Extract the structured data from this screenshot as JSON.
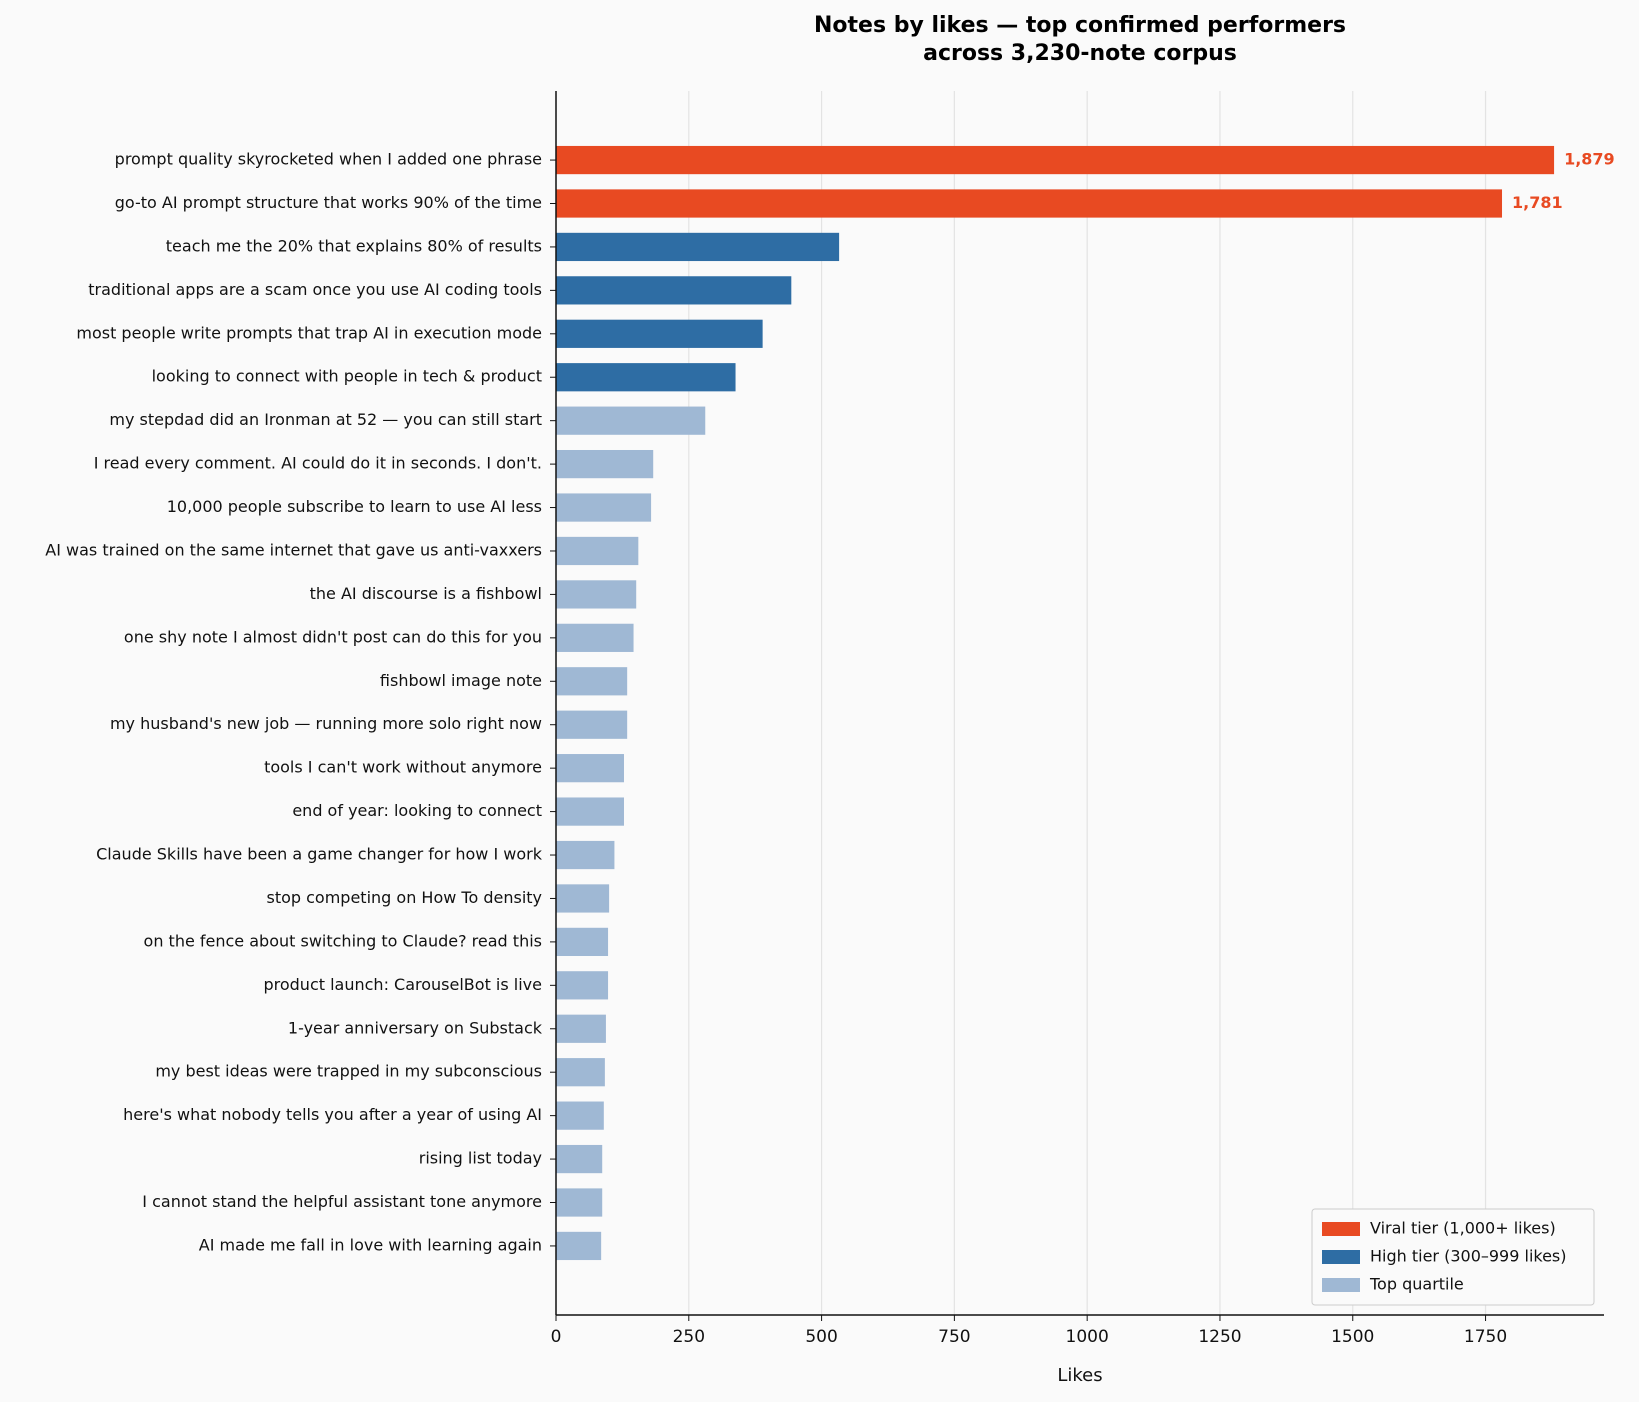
{
  "chart_data": {
    "type": "barh",
    "title": "Notes by likes — top confirmed performers\nacross 3,230-note corpus",
    "xlabel": "Likes",
    "categories": [
      "prompt quality skyrocketed when I added one phrase",
      "go-to AI prompt structure that works 90% of the time",
      "teach me the 20% that explains 80% of results",
      "traditional apps are a scam once you use AI coding tools",
      "most people write prompts that trap AI in execution mode",
      "looking to connect with people in tech & product",
      "my stepdad did an Ironman at 52 — you can still start",
      "I read every comment. AI could do it in seconds. I don't.",
      "10,000 people subscribe to learn to use AI less",
      "AI was trained on the same internet that gave us anti-vaxxers",
      "the AI discourse is a fishbowl",
      "one shy note I almost didn't post can do this for you",
      "fishbowl image note",
      "my husband's new job — running more solo right now",
      "tools I can't work without anymore",
      "end of year: looking to connect",
      "Claude Skills have been a game changer for how I work",
      "stop competing on How To density",
      "on the fence about switching to Claude? read this",
      "product launch: CarouselBot is live",
      "1-year anniversary on Substack",
      "my best ideas were trapped in my subconscious",
      "here's what nobody tells you after a year of using AI",
      "rising list today",
      "I cannot stand the helpful assistant tone anymore",
      "AI made me fall in love with learning again"
    ],
    "series": [
      {
        "name": "Viral tier (1,000+ likes)",
        "color": "#e84a22",
        "values": [
          1879,
          1781,
          null,
          null,
          null,
          null,
          null,
          null,
          null,
          null,
          null,
          null,
          null,
          null,
          null,
          null,
          null,
          null,
          null,
          null,
          null,
          null,
          null,
          null,
          null,
          null
        ],
        "value_labels": [
          "1,879",
          "1,781",
          null,
          null,
          null,
          null,
          null,
          null,
          null,
          null,
          null,
          null,
          null,
          null,
          null,
          null,
          null,
          null,
          null,
          null,
          null,
          null,
          null,
          null,
          null,
          null
        ]
      },
      {
        "name": "High tier (300–999 likes)",
        "color": "#2e6da4",
        "values": [
          null,
          null,
          533,
          443,
          389,
          338,
          null,
          null,
          null,
          null,
          null,
          null,
          null,
          null,
          null,
          null,
          null,
          null,
          null,
          null,
          null,
          null,
          null,
          null,
          null,
          null
        ]
      },
      {
        "name": "Top quartile",
        "color": "#9fb8d4",
        "values": [
          null,
          null,
          null,
          null,
          null,
          null,
          281,
          183,
          179,
          155,
          151,
          146,
          134,
          134,
          128,
          128,
          110,
          100,
          98,
          98,
          94,
          92,
          90,
          87,
          87,
          85
        ]
      }
    ],
    "xlim": [
      0,
      1973
    ],
    "xticks": [
      0,
      250,
      500,
      750,
      1000,
      1250,
      1500,
      1750
    ],
    "grid": true,
    "legend": "lower right"
  }
}
